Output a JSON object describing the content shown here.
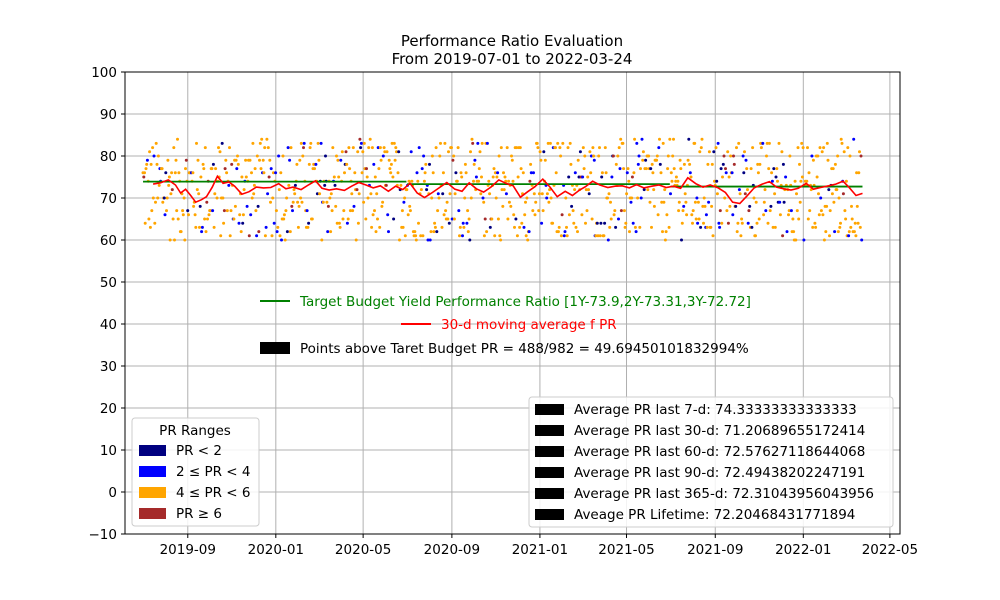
{
  "chart_data": {
    "type": "scatter",
    "title": "Performance Ratio Evaluation",
    "subtitle": "From 2019-07-01 to 2022-03-24",
    "xlabel": "",
    "ylabel": "",
    "xlim": [
      "2019-06-06",
      "2022-05-15"
    ],
    "ylim": [
      -10,
      100
    ],
    "y_ticks": [
      -10,
      0,
      10,
      20,
      30,
      40,
      50,
      60,
      70,
      80,
      90,
      100
    ],
    "x_ticks": [
      "2019-09",
      "2020-01",
      "2020-05",
      "2020-09",
      "2021-01",
      "2021-05",
      "2021-09",
      "2022-01",
      "2022-05"
    ],
    "grid": true,
    "date_range": {
      "start": "2019-07-01",
      "end": "2022-03-24"
    },
    "colors": {
      "target_line": "#008000",
      "moving_average": "#ff0000",
      "pr_lt_2": "#000080",
      "pr_2_4": "#0000ff",
      "pr_4_6": "#ffa500",
      "pr_ge_6": "#a52a2a"
    },
    "target_budget_segments": [
      {
        "x_start": "2019-07-01",
        "x_end": "2020-06-30",
        "y": 73.9
      },
      {
        "x_start": "2020-07-01",
        "x_end": "2021-06-30",
        "y": 73.31
      },
      {
        "x_start": "2021-07-01",
        "x_end": "2022-03-24",
        "y": 72.72
      }
    ],
    "moving_average_30d": [
      {
        "x": "2019-07-15",
        "y": 73.3
      },
      {
        "x": "2019-07-25",
        "y": 73.6
      },
      {
        "x": "2019-08-05",
        "y": 74.3
      },
      {
        "x": "2019-08-15",
        "y": 73.1
      },
      {
        "x": "2019-08-22",
        "y": 71.2
      },
      {
        "x": "2019-08-29",
        "y": 72.1
      },
      {
        "x": "2019-09-05",
        "y": 70.6
      },
      {
        "x": "2019-09-12",
        "y": 69.0
      },
      {
        "x": "2019-09-20",
        "y": 69.6
      },
      {
        "x": "2019-09-27",
        "y": 70.3
      },
      {
        "x": "2019-10-05",
        "y": 72.6
      },
      {
        "x": "2019-10-12",
        "y": 75.2
      },
      {
        "x": "2019-10-20",
        "y": 73.5
      },
      {
        "x": "2019-10-28",
        "y": 73.8
      },
      {
        "x": "2019-11-05",
        "y": 72.8
      },
      {
        "x": "2019-11-15",
        "y": 70.9
      },
      {
        "x": "2019-11-25",
        "y": 71.5
      },
      {
        "x": "2019-12-05",
        "y": 72.6
      },
      {
        "x": "2019-12-15",
        "y": 72.4
      },
      {
        "x": "2019-12-25",
        "y": 72.5
      },
      {
        "x": "2020-01-05",
        "y": 73.4
      },
      {
        "x": "2020-01-15",
        "y": 72.2
      },
      {
        "x": "2020-01-25",
        "y": 72.6
      },
      {
        "x": "2020-02-05",
        "y": 72.0
      },
      {
        "x": "2020-02-15",
        "y": 73.1
      },
      {
        "x": "2020-02-25",
        "y": 74.1
      },
      {
        "x": "2020-03-05",
        "y": 72.3
      },
      {
        "x": "2020-03-15",
        "y": 71.9
      },
      {
        "x": "2020-03-25",
        "y": 72.2
      },
      {
        "x": "2020-04-05",
        "y": 71.8
      },
      {
        "x": "2020-04-15",
        "y": 72.8
      },
      {
        "x": "2020-04-25",
        "y": 73.7
      },
      {
        "x": "2020-05-05",
        "y": 73.1
      },
      {
        "x": "2020-05-15",
        "y": 72.4
      },
      {
        "x": "2020-05-25",
        "y": 72.9
      },
      {
        "x": "2020-06-05",
        "y": 71.6
      },
      {
        "x": "2020-06-15",
        "y": 72.8
      },
      {
        "x": "2020-06-25",
        "y": 72.0
      },
      {
        "x": "2020-07-05",
        "y": 73.5
      },
      {
        "x": "2020-07-15",
        "y": 71.2
      },
      {
        "x": "2020-07-25",
        "y": 70.1
      },
      {
        "x": "2020-08-05",
        "y": 71.3
      },
      {
        "x": "2020-08-15",
        "y": 72.5
      },
      {
        "x": "2020-08-25",
        "y": 73.7
      },
      {
        "x": "2020-09-05",
        "y": 72.1
      },
      {
        "x": "2020-09-15",
        "y": 71.6
      },
      {
        "x": "2020-09-25",
        "y": 73.6
      },
      {
        "x": "2020-10-05",
        "y": 72.2
      },
      {
        "x": "2020-10-15",
        "y": 71.4
      },
      {
        "x": "2020-10-25",
        "y": 72.6
      },
      {
        "x": "2020-11-05",
        "y": 74.3
      },
      {
        "x": "2020-11-15",
        "y": 73.5
      },
      {
        "x": "2020-11-25",
        "y": 72.9
      },
      {
        "x": "2020-12-05",
        "y": 70.2
      },
      {
        "x": "2020-12-15",
        "y": 71.5
      },
      {
        "x": "2020-12-25",
        "y": 72.7
      },
      {
        "x": "2021-01-05",
        "y": 74.5
      },
      {
        "x": "2021-01-15",
        "y": 72.6
      },
      {
        "x": "2021-01-25",
        "y": 70.3
      },
      {
        "x": "2021-02-05",
        "y": 71.6
      },
      {
        "x": "2021-02-15",
        "y": 70.6
      },
      {
        "x": "2021-02-25",
        "y": 71.9
      },
      {
        "x": "2021-03-05",
        "y": 72.7
      },
      {
        "x": "2021-03-15",
        "y": 74.0
      },
      {
        "x": "2021-03-25",
        "y": 73.1
      },
      {
        "x": "2021-04-05",
        "y": 72.5
      },
      {
        "x": "2021-04-15",
        "y": 72.8
      },
      {
        "x": "2021-04-25",
        "y": 72.9
      },
      {
        "x": "2021-05-05",
        "y": 72.4
      },
      {
        "x": "2021-05-15",
        "y": 73.2
      },
      {
        "x": "2021-05-25",
        "y": 72.4
      },
      {
        "x": "2021-06-05",
        "y": 72.8
      },
      {
        "x": "2021-06-15",
        "y": 73.1
      },
      {
        "x": "2021-06-25",
        "y": 72.5
      },
      {
        "x": "2021-07-05",
        "y": 72.8
      },
      {
        "x": "2021-07-15",
        "y": 72.3
      },
      {
        "x": "2021-07-25",
        "y": 74.8
      },
      {
        "x": "2021-08-05",
        "y": 73.4
      },
      {
        "x": "2021-08-15",
        "y": 72.6
      },
      {
        "x": "2021-08-25",
        "y": 73.1
      },
      {
        "x": "2021-09-05",
        "y": 72.4
      },
      {
        "x": "2021-09-15",
        "y": 71.3
      },
      {
        "x": "2021-09-25",
        "y": 69.0
      },
      {
        "x": "2021-10-05",
        "y": 68.7
      },
      {
        "x": "2021-10-15",
        "y": 70.5
      },
      {
        "x": "2021-10-25",
        "y": 72.4
      },
      {
        "x": "2021-11-05",
        "y": 73.3
      },
      {
        "x": "2021-11-15",
        "y": 73.9
      },
      {
        "x": "2021-11-25",
        "y": 72.6
      },
      {
        "x": "2021-12-05",
        "y": 72.2
      },
      {
        "x": "2021-12-15",
        "y": 71.9
      },
      {
        "x": "2021-12-25",
        "y": 72.3
      },
      {
        "x": "2022-01-05",
        "y": 73.5
      },
      {
        "x": "2022-01-15",
        "y": 72.1
      },
      {
        "x": "2022-01-25",
        "y": 72.5
      },
      {
        "x": "2022-02-05",
        "y": 72.9
      },
      {
        "x": "2022-02-15",
        "y": 73.3
      },
      {
        "x": "2022-02-25",
        "y": 74.0
      },
      {
        "x": "2022-03-05",
        "y": 72.6
      },
      {
        "x": "2022-03-15",
        "y": 70.6
      },
      {
        "x": "2022-03-24",
        "y": 71.1
      }
    ],
    "legend_top": {
      "target_label": "Target Budget Yield Performance Ratio [1Y-73.9,2Y-73.31,3Y-72.72]",
      "moving_avg_label": "30-d moving average f PR",
      "points_above_label": "Points above Taret Budget PR = 488/982 = 49.69450101832994%"
    },
    "legend_ranges": {
      "title": "PR Ranges",
      "items": [
        {
          "label": "PR < 2",
          "color": "#000080"
        },
        {
          "label": "2 ≤ PR < 4",
          "color": "#0000ff"
        },
        {
          "label": "4 ≤ PR < 6",
          "color": "#ffa500"
        },
        {
          "label": "PR ≥ 6",
          "color": "#a52a2a"
        }
      ]
    },
    "legend_averages": [
      {
        "label": "Average PR last 7-d:  74.33333333333333"
      },
      {
        "label": "Average PR last 30-d:  71.20689655172414"
      },
      {
        "label": "Average PR last 60-d:  72.57627118644068"
      },
      {
        "label": "Average PR last 90-d:  72.49438202247191"
      },
      {
        "label": "Average PR last 365-d:  72.31043956043956"
      },
      {
        "label": "Aveage PR Lifetime:  72.20468431771894"
      }
    ],
    "scatter": {
      "n_points": 982,
      "y_range": [
        60,
        84
      ],
      "category_share": {
        "pr_lt_2": 0.05,
        "pr_2_4": 0.15,
        "pr_4_6": 0.75,
        "pr_ge_6": 0.05
      }
    }
  }
}
